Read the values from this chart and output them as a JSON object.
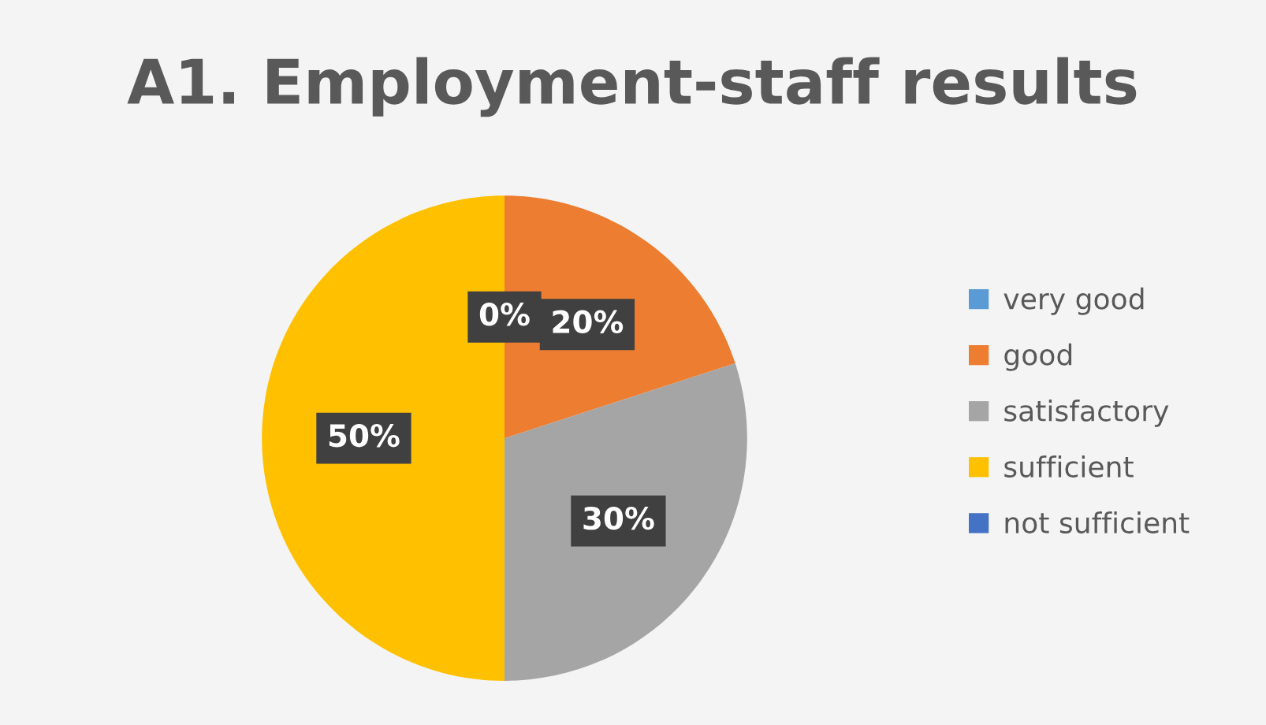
{
  "chart_data": {
    "type": "pie",
    "title": "A1. Employment-staff results",
    "categories": [
      "very good",
      "good",
      "satisfactory",
      "sufficient",
      "not sufficient"
    ],
    "values": [
      0,
      20,
      30,
      50,
      0
    ],
    "colors": [
      "#5b9bd5",
      "#ed7d31",
      "#a5a5a5",
      "#ffc000",
      "#4472c4"
    ],
    "value_labels": [
      "0%",
      "20%",
      "30%",
      "50%",
      null
    ],
    "legend": "right"
  }
}
